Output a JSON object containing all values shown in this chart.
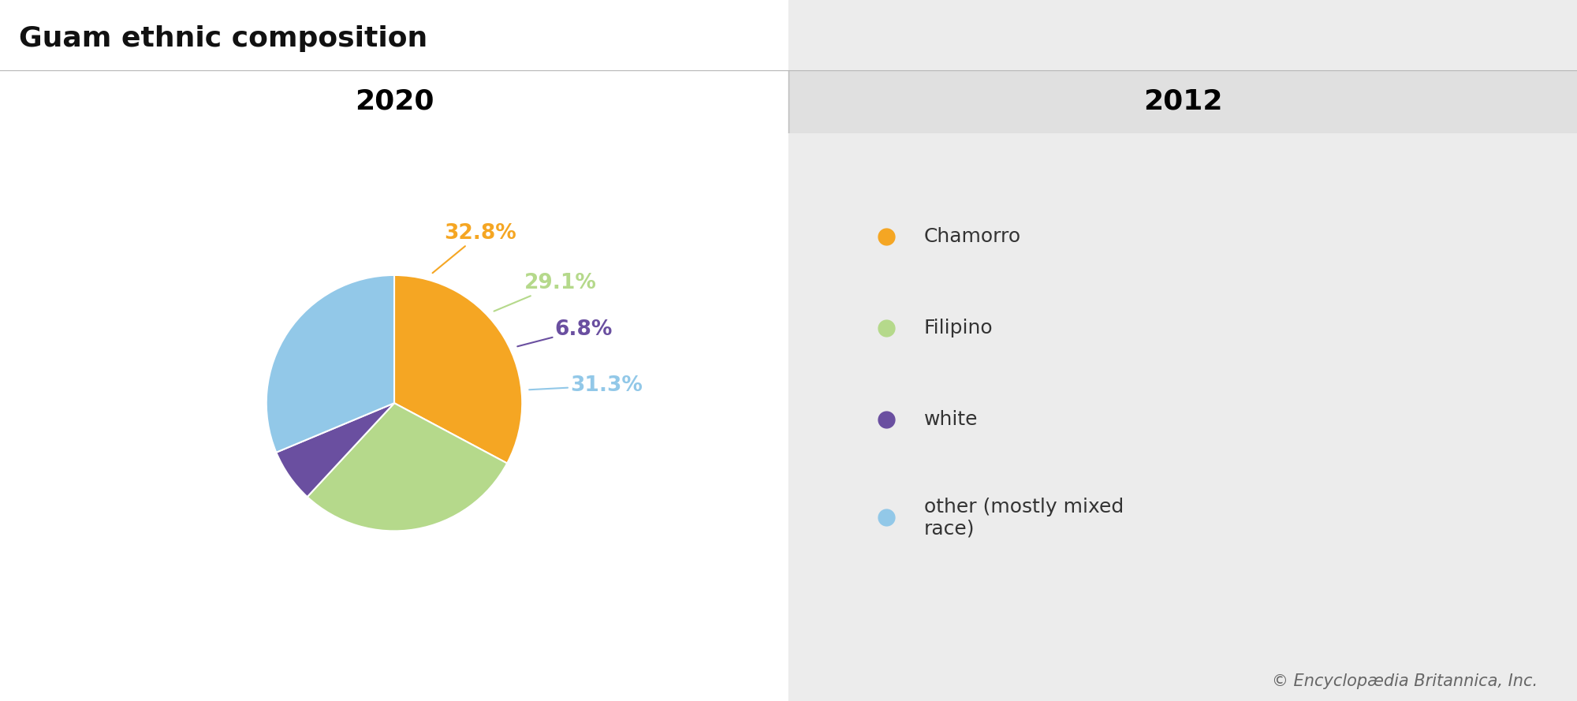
{
  "title": "Guam ethnic composition",
  "title_fontsize": 26,
  "title_fontweight": "bold",
  "col_headers": [
    "2020",
    "2012"
  ],
  "col_header_fontsize": 26,
  "col_header_fontweight": "bold",
  "labels": [
    "Chamorro",
    "Filipino",
    "white",
    "other (mostly mixed\nrace)"
  ],
  "values": [
    32.8,
    29.1,
    6.8,
    31.3
  ],
  "colors": [
    "#F5A623",
    "#B5D98B",
    "#6A4FA0",
    "#92C8E8"
  ],
  "pct_labels": [
    "32.8%",
    "29.1%",
    "6.8%",
    "31.3%"
  ],
  "copyright": "© Encyclopædia Britannica, Inc.",
  "copyright_fontsize": 15,
  "header_bg_left": "#FFFFFF",
  "header_bg_right": "#E0E0E0",
  "body_bg_right": "#ECECEC",
  "fig_width": 20.0,
  "fig_height": 8.89
}
